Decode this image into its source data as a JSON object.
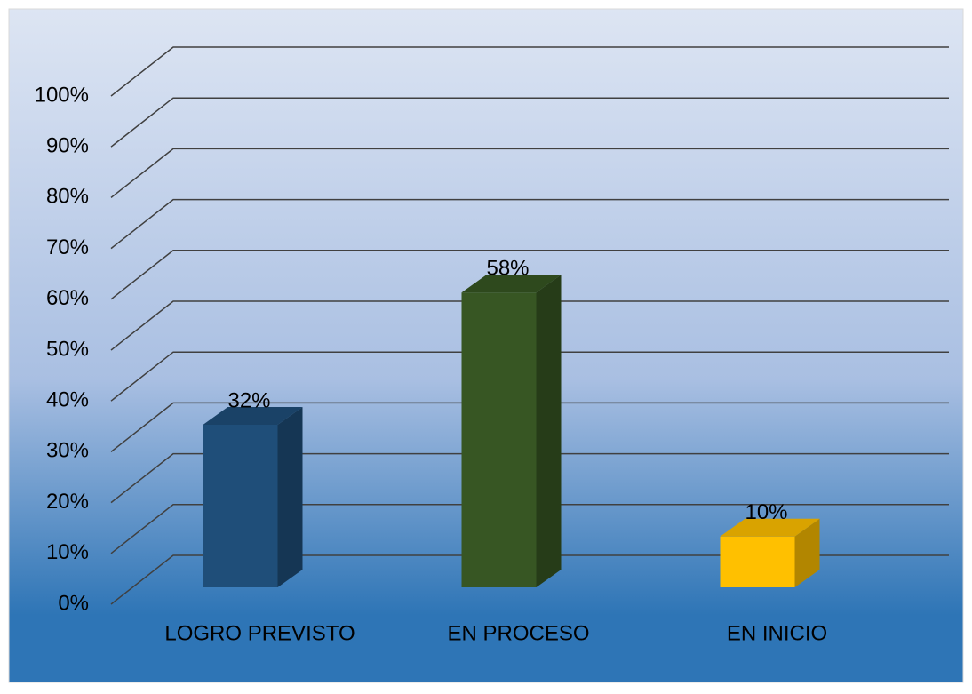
{
  "chart_data": {
    "type": "bar3d",
    "categories": [
      "LOGRO PREVISTO",
      "EN PROCESO",
      "EN INICIO"
    ],
    "values": [
      32,
      58,
      10
    ],
    "value_labels": [
      "32%",
      "58%",
      "10%"
    ],
    "colors": [
      "#1f4e79",
      "#375623",
      "#ffc000"
    ],
    "ylim": [
      0,
      100
    ],
    "yticks": [
      {
        "value": 0,
        "label": "0%"
      },
      {
        "value": 10,
        "label": "10%"
      },
      {
        "value": 20,
        "label": "20%"
      },
      {
        "value": 30,
        "label": "30%"
      },
      {
        "value": 40,
        "label": "40%"
      },
      {
        "value": 50,
        "label": "50%"
      },
      {
        "value": 60,
        "label": "60%"
      },
      {
        "value": 70,
        "label": "70%"
      },
      {
        "value": 80,
        "label": "80%"
      },
      {
        "value": 90,
        "label": "90%"
      },
      {
        "value": 100,
        "label": "100%"
      }
    ],
    "grid": true
  }
}
